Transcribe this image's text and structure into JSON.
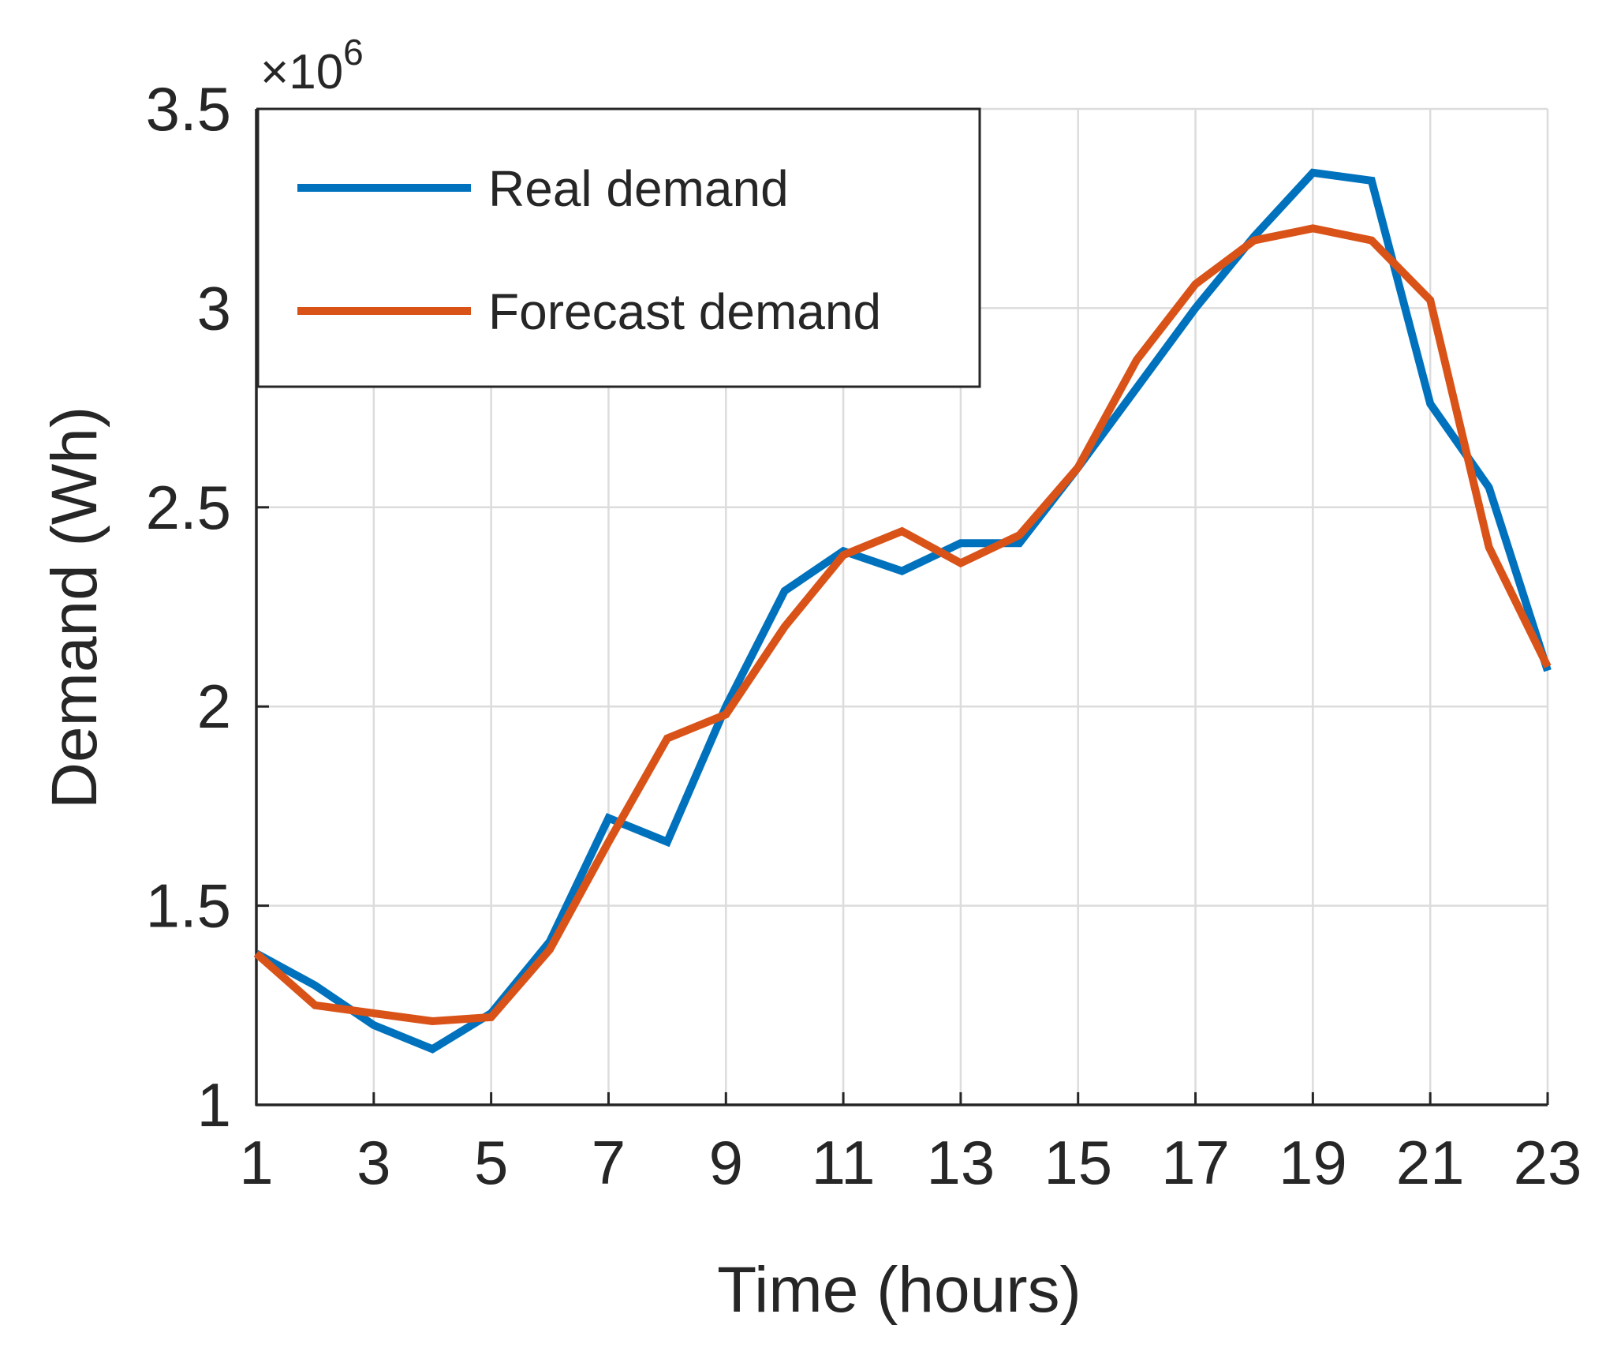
{
  "chart_data": {
    "type": "line",
    "title": "",
    "xlabel": "Time (hours)",
    "ylabel": "Demand (Wh)",
    "y_exponent_label": "×10",
    "y_exponent_power": "6",
    "xlim": [
      1,
      23
    ],
    "ylim": [
      1,
      3.5
    ],
    "x_ticks": [
      1,
      3,
      5,
      7,
      9,
      11,
      13,
      15,
      17,
      19,
      21,
      23
    ],
    "y_ticks": [
      1,
      1.5,
      2,
      2.5,
      3,
      3.5
    ],
    "grid": true,
    "legend_position": "top-left",
    "x": [
      1,
      2,
      3,
      4,
      5,
      6,
      7,
      8,
      9,
      10,
      11,
      12,
      13,
      14,
      15,
      16,
      17,
      18,
      19,
      20,
      21,
      22,
      23
    ],
    "series": [
      {
        "name": "Real demand",
        "color": "#0072BD",
        "values": [
          1.38,
          1.3,
          1.2,
          1.14,
          1.23,
          1.41,
          1.72,
          1.66,
          2.0,
          2.29,
          2.39,
          2.34,
          2.41,
          2.41,
          2.6,
          2.8,
          3.0,
          3.18,
          3.34,
          3.32,
          2.76,
          2.55,
          2.09
        ]
      },
      {
        "name": "Forecast demand",
        "color": "#D95319",
        "values": [
          1.38,
          1.25,
          1.23,
          1.21,
          1.22,
          1.39,
          1.66,
          1.92,
          1.98,
          2.2,
          2.38,
          2.44,
          2.36,
          2.43,
          2.6,
          2.87,
          3.06,
          3.17,
          3.2,
          3.17,
          3.02,
          2.4,
          2.1
        ]
      }
    ]
  }
}
